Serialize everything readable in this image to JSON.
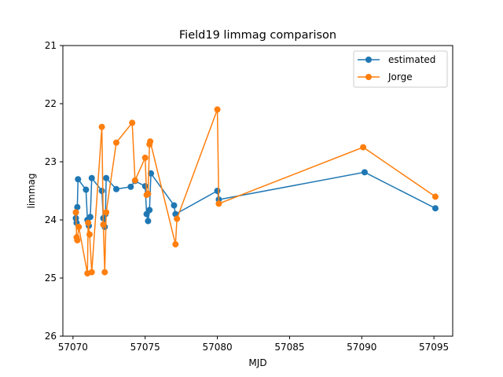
{
  "chart_data": {
    "type": "line",
    "title": "Field19 limmag comparison",
    "xlabel": "MJD",
    "ylabel": "limmag",
    "xlim": [
      57069.3,
      57096.3
    ],
    "ylim": [
      26,
      21
    ],
    "y_inverted": true,
    "xticks": [
      57070,
      57075,
      57080,
      57085,
      57090,
      57095
    ],
    "yticks": [
      21,
      22,
      23,
      24,
      25,
      26
    ],
    "grid": false,
    "legend_position": "top-right",
    "series": [
      {
        "name": "estimated",
        "color": "#1f77b4",
        "points": [
          [
            57070.2,
            23.97
          ],
          [
            57070.25,
            24.05
          ],
          [
            57070.3,
            23.78
          ],
          [
            57070.35,
            23.3
          ],
          [
            57070.9,
            23.48
          ],
          [
            57071.0,
            24.0
          ],
          [
            57071.1,
            24.1
          ],
          [
            57071.2,
            23.95
          ],
          [
            57071.3,
            23.28
          ],
          [
            57072.0,
            23.5
          ],
          [
            57072.1,
            23.97
          ],
          [
            57072.2,
            24.12
          ],
          [
            57072.25,
            23.9
          ],
          [
            57072.3,
            23.28
          ],
          [
            57073.0,
            23.47
          ],
          [
            57074.0,
            23.43
          ],
          [
            57074.3,
            23.33
          ],
          [
            57075.0,
            23.42
          ],
          [
            57075.1,
            23.9
          ],
          [
            57075.2,
            24.02
          ],
          [
            57075.3,
            23.83
          ],
          [
            57075.4,
            23.2
          ],
          [
            57077.0,
            23.75
          ],
          [
            57077.1,
            23.9
          ],
          [
            57080.0,
            23.5
          ],
          [
            57080.1,
            23.65
          ],
          [
            57090.2,
            23.18
          ],
          [
            57095.1,
            23.8
          ]
        ]
      },
      {
        "name": "Jorge",
        "color": "#ff7f0e",
        "points": [
          [
            57070.2,
            23.87
          ],
          [
            57070.25,
            24.3
          ],
          [
            57070.3,
            24.35
          ],
          [
            57070.4,
            24.12
          ],
          [
            57071.0,
            24.92
          ],
          [
            57071.05,
            24.05
          ],
          [
            57071.15,
            24.25
          ],
          [
            57071.3,
            24.9
          ],
          [
            57072.0,
            22.4
          ],
          [
            57072.1,
            24.08
          ],
          [
            57072.2,
            24.9
          ],
          [
            57072.3,
            23.87
          ],
          [
            57073.0,
            22.67
          ],
          [
            57074.1,
            22.33
          ],
          [
            57074.3,
            23.32
          ],
          [
            57075.0,
            22.93
          ],
          [
            57075.1,
            23.57
          ],
          [
            57075.2,
            23.55
          ],
          [
            57075.3,
            22.7
          ],
          [
            57075.35,
            22.65
          ],
          [
            57077.1,
            24.42
          ],
          [
            57077.2,
            23.98
          ],
          [
            57080.0,
            22.1
          ],
          [
            57080.1,
            23.72
          ],
          [
            57090.1,
            22.75
          ],
          [
            57095.1,
            23.6
          ]
        ]
      }
    ]
  }
}
